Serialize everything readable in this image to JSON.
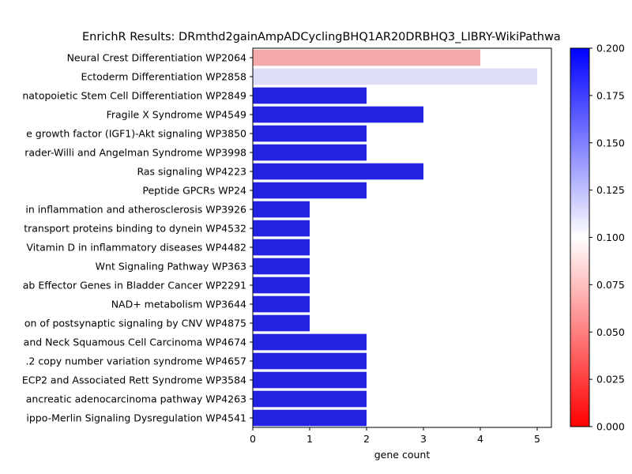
{
  "chart_data": {
    "type": "bar",
    "orientation": "horizontal",
    "title": "EnrichR Results: DRmthd2gainAmpADCyclingBHQ1AR20DRBHQ3_LIBRY-WikiPathwa",
    "xlabel": "gene count",
    "ylabel": "",
    "xlim": [
      0,
      5.25
    ],
    "xticks": [
      "0",
      "1",
      "2",
      "3",
      "4",
      "5"
    ],
    "categories": [
      "Neural Crest Differentiation WP2064",
      "Ectoderm Differentiation WP2858",
      "natopoietic Stem Cell Differentiation WP2849",
      "Fragile X Syndrome  WP4549",
      "e growth factor (IGF1)-Akt signaling WP3850",
      "rader-Willi and Angelman Syndrome WP3998",
      "Ras signaling WP4223",
      "Peptide GPCRs WP24",
      "in inflammation and atherosclerosis WP3926",
      "transport proteins binding to dynein WP4532",
      "Vitamin D in inflammatory diseases WP4482",
      "Wnt Signaling Pathway WP363",
      "ab Effector Genes in Bladder Cancer WP2291",
      "NAD+ metabolism WP3644",
      "on of postsynaptic signaling by CNV WP4875",
      "and Neck Squamous Cell Carcinoma WP4674",
      ".2 copy number variation syndrome WP4657",
      "ECP2 and Associated Rett Syndrome WP3584",
      "ancreatic adenocarcinoma pathway WP4263",
      "ippo-Merlin Signaling Dysregulation WP4541"
    ],
    "values": [
      4,
      5,
      2,
      3,
      2,
      2,
      3,
      2,
      1,
      1,
      1,
      1,
      1,
      1,
      1,
      2,
      2,
      2,
      2,
      2
    ],
    "bar_colors": [
      "#f5aaaa",
      "#dedef8",
      "#2222e0",
      "#2222e0",
      "#2222e0",
      "#2222e0",
      "#2222e0",
      "#2222e0",
      "#2222e0",
      "#2222e0",
      "#2222e0",
      "#2222e0",
      "#2222e0",
      "#2222e0",
      "#2222e0",
      "#2222e0",
      "#2222e0",
      "#2222e0",
      "#2222e0",
      "#2222e0"
    ],
    "colorbar": {
      "range": [
        0,
        0.2
      ],
      "ticks": [
        "0.000",
        "0.025",
        "0.050",
        "0.075",
        "0.100",
        "0.125",
        "0.150",
        "0.175",
        "0.200"
      ],
      "colormap": "bwr_r",
      "low_color": "#ff0000",
      "mid_color": "#ffffff",
      "high_color": "#0000ff"
    },
    "grid": false,
    "legend": "none"
  }
}
